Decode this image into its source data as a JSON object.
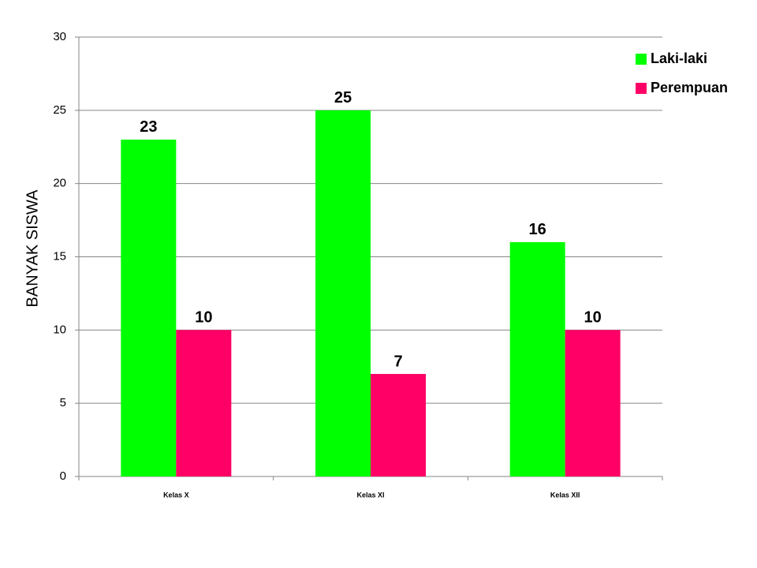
{
  "chart_data": {
    "type": "bar",
    "y_label": "BANYAK  SISWA",
    "categories": [
      "Kelas X",
      "Kelas XI",
      "Kelas XII"
    ],
    "series": [
      {
        "name": "Laki-laki",
        "color": "#00ff00",
        "values": [
          23,
          25,
          16
        ]
      },
      {
        "name": "Perempuan",
        "color": "#ff0066",
        "values": [
          10,
          7,
          10
        ]
      }
    ],
    "ylim": [
      0,
      30
    ],
    "yticks": [
      0,
      5,
      10,
      15,
      20,
      25,
      30
    ],
    "grid": true,
    "legend": "upper right"
  }
}
